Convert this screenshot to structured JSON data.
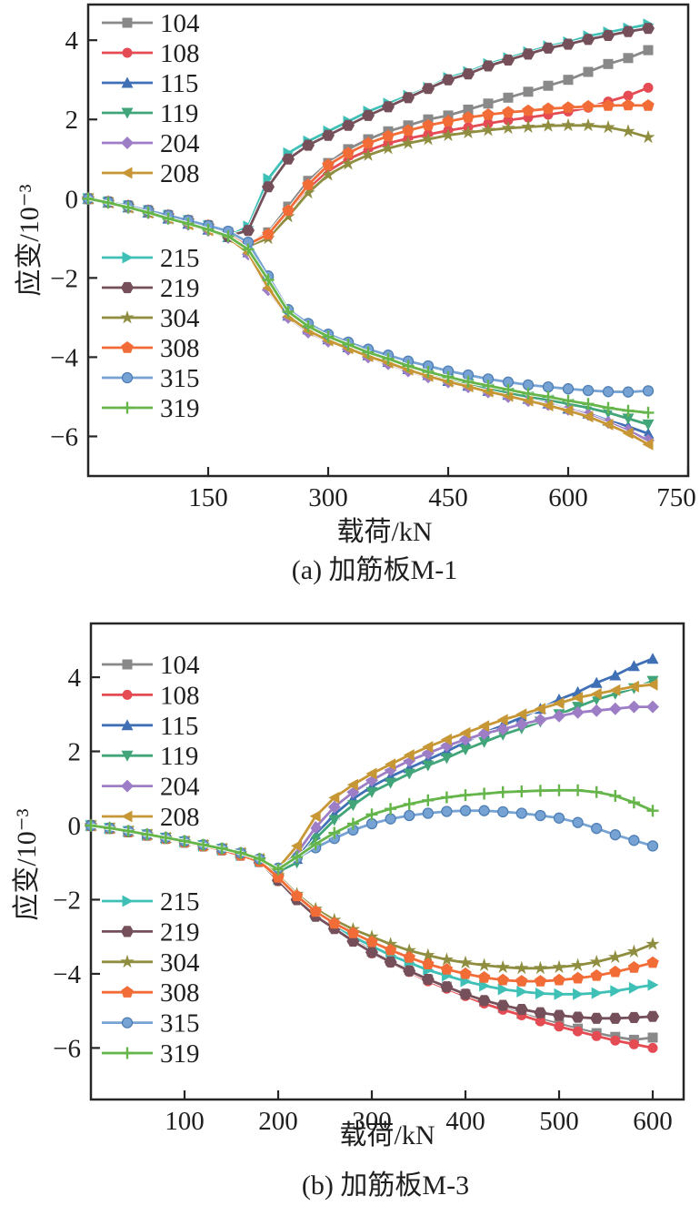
{
  "figure": {
    "background": "#ffffff",
    "text_color": "#1f1f1f",
    "axis_color": "#262626"
  },
  "chart_data": [
    {
      "type": "line",
      "title": "(a) 加筋板M-1",
      "xlabel": "载荷/kN",
      "ylabel": "应变/10⁻³",
      "xlim": [
        0,
        750
      ],
      "ylim": [
        -7.0,
        4.9
      ],
      "xticks": [
        150,
        300,
        450,
        600,
        750
      ],
      "yticks": [
        4,
        2,
        0,
        -2,
        -4,
        -6
      ],
      "grid": false,
      "legend_position": "inside upper-left, two stacked groups",
      "legend_groups": [
        [
          "104",
          "108",
          "115",
          "119",
          "204",
          "208"
        ],
        [
          "215",
          "219",
          "304",
          "308",
          "315",
          "319"
        ]
      ],
      "x": [
        0,
        25,
        50,
        75,
        100,
        125,
        150,
        175,
        200,
        225,
        250,
        275,
        300,
        325,
        350,
        375,
        400,
        425,
        450,
        475,
        500,
        525,
        550,
        575,
        600,
        625,
        650,
        675,
        700
      ],
      "series": [
        {
          "name": "104",
          "color": "#898989",
          "marker": "square",
          "values": [
            0,
            -0.08,
            -0.18,
            -0.3,
            -0.42,
            -0.55,
            -0.68,
            -0.85,
            -1.15,
            -0.85,
            -0.2,
            0.45,
            0.9,
            1.25,
            1.5,
            1.7,
            1.85,
            2.0,
            2.1,
            2.25,
            2.4,
            2.55,
            2.7,
            2.85,
            3.0,
            3.2,
            3.4,
            3.55,
            3.75
          ]
        },
        {
          "name": "108",
          "color": "#e54b52",
          "marker": "circle",
          "values": [
            0,
            -0.09,
            -0.2,
            -0.32,
            -0.45,
            -0.57,
            -0.7,
            -0.88,
            -1.18,
            -0.95,
            -0.35,
            0.25,
            0.7,
            1.0,
            1.22,
            1.4,
            1.52,
            1.62,
            1.72,
            1.8,
            1.9,
            1.98,
            2.05,
            2.12,
            2.2,
            2.3,
            2.45,
            2.6,
            2.8
          ]
        },
        {
          "name": "115",
          "color": "#3f6fb5",
          "marker": "triangle-up",
          "values": [
            0,
            -0.1,
            -0.22,
            -0.35,
            -0.5,
            -0.63,
            -0.78,
            -0.97,
            -1.35,
            -2.2,
            -2.95,
            -3.3,
            -3.55,
            -3.75,
            -3.95,
            -4.12,
            -4.3,
            -4.45,
            -4.6,
            -4.72,
            -4.85,
            -4.95,
            -5.05,
            -5.17,
            -5.3,
            -5.42,
            -5.6,
            -5.75,
            -5.93
          ]
        },
        {
          "name": "119",
          "color": "#41a579",
          "marker": "triangle-down",
          "values": [
            0,
            -0.1,
            -0.22,
            -0.35,
            -0.5,
            -0.63,
            -0.78,
            -0.95,
            -1.3,
            -2.1,
            -2.88,
            -3.25,
            -3.5,
            -3.7,
            -3.9,
            -4.07,
            -4.25,
            -4.4,
            -4.55,
            -4.67,
            -4.8,
            -4.9,
            -5.0,
            -5.08,
            -5.18,
            -5.28,
            -5.4,
            -5.55,
            -5.7
          ]
        },
        {
          "name": "204",
          "color": "#9d7ec6",
          "marker": "diamond",
          "values": [
            0,
            -0.1,
            -0.23,
            -0.36,
            -0.5,
            -0.65,
            -0.8,
            -0.98,
            -1.4,
            -2.3,
            -3.0,
            -3.37,
            -3.6,
            -3.8,
            -4.0,
            -4.17,
            -4.35,
            -4.5,
            -4.63,
            -4.75,
            -4.88,
            -5.0,
            -5.1,
            -5.2,
            -5.32,
            -5.45,
            -5.65,
            -5.85,
            -6.1
          ]
        },
        {
          "name": "208",
          "color": "#c79735",
          "marker": "triangle-left",
          "values": [
            0,
            -0.1,
            -0.23,
            -0.36,
            -0.5,
            -0.65,
            -0.8,
            -0.98,
            -1.37,
            -2.25,
            -2.97,
            -3.33,
            -3.58,
            -3.78,
            -3.98,
            -4.14,
            -4.32,
            -4.48,
            -4.62,
            -4.74,
            -4.87,
            -4.98,
            -5.1,
            -5.22,
            -5.35,
            -5.5,
            -5.7,
            -5.92,
            -6.2
          ]
        },
        {
          "name": "215",
          "color": "#3ec0b6",
          "marker": "triangle-right",
          "values": [
            0,
            -0.08,
            -0.18,
            -0.3,
            -0.42,
            -0.55,
            -0.68,
            -0.95,
            -0.7,
            0.5,
            1.15,
            1.45,
            1.7,
            1.95,
            2.2,
            2.4,
            2.6,
            2.8,
            3.05,
            3.2,
            3.4,
            3.55,
            3.7,
            3.85,
            3.95,
            4.1,
            4.2,
            4.3,
            4.4
          ]
        },
        {
          "name": "219",
          "color": "#75505a",
          "marker": "hexagon",
          "values": [
            0,
            -0.08,
            -0.18,
            -0.3,
            -0.42,
            -0.55,
            -0.68,
            -0.95,
            -0.8,
            0.3,
            1.0,
            1.35,
            1.6,
            1.85,
            2.1,
            2.32,
            2.55,
            2.78,
            3.0,
            3.15,
            3.35,
            3.5,
            3.65,
            3.8,
            3.9,
            4.02,
            4.12,
            4.22,
            4.3
          ]
        },
        {
          "name": "304",
          "color": "#8f8d3f",
          "marker": "star",
          "values": [
            0,
            -0.09,
            -0.2,
            -0.32,
            -0.45,
            -0.57,
            -0.7,
            -0.88,
            -1.2,
            -1.0,
            -0.45,
            0.15,
            0.6,
            0.88,
            1.1,
            1.27,
            1.4,
            1.5,
            1.6,
            1.67,
            1.73,
            1.78,
            1.81,
            1.84,
            1.85,
            1.85,
            1.8,
            1.7,
            1.55
          ]
        },
        {
          "name": "308",
          "color": "#f16c37",
          "marker": "pentagon",
          "values": [
            0,
            -0.08,
            -0.18,
            -0.3,
            -0.42,
            -0.55,
            -0.68,
            -0.85,
            -1.15,
            -0.9,
            -0.3,
            0.35,
            0.85,
            1.15,
            1.4,
            1.58,
            1.72,
            1.85,
            1.95,
            2.05,
            2.12,
            2.18,
            2.22,
            2.27,
            2.3,
            2.33,
            2.35,
            2.36,
            2.35
          ]
        },
        {
          "name": "315",
          "color": "#76a3d3",
          "marker": "ball",
          "values": [
            0,
            -0.08,
            -0.18,
            -0.3,
            -0.42,
            -0.55,
            -0.68,
            -0.82,
            -1.1,
            -1.95,
            -2.8,
            -3.15,
            -3.42,
            -3.62,
            -3.8,
            -3.95,
            -4.1,
            -4.22,
            -4.35,
            -4.45,
            -4.55,
            -4.63,
            -4.7,
            -4.75,
            -4.8,
            -4.84,
            -4.87,
            -4.88,
            -4.85
          ]
        },
        {
          "name": "319",
          "color": "#65b54b",
          "marker": "plus",
          "values": [
            0,
            -0.1,
            -0.22,
            -0.35,
            -0.5,
            -0.63,
            -0.78,
            -0.95,
            -1.28,
            -2.05,
            -2.85,
            -3.22,
            -3.48,
            -3.68,
            -3.88,
            -4.04,
            -4.22,
            -4.37,
            -4.5,
            -4.62,
            -4.72,
            -4.82,
            -4.92,
            -5.0,
            -5.1,
            -5.18,
            -5.28,
            -5.35,
            -5.4
          ]
        }
      ]
    },
    {
      "type": "line",
      "title": "(b) 加筋板M-3",
      "xlabel": "载荷/kN",
      "ylabel": "应变/10⁻³",
      "xlim": [
        0,
        633
      ],
      "ylim": [
        -7.39,
        5.45
      ],
      "xticks": [
        100,
        200,
        300,
        400,
        500,
        600
      ],
      "yticks": [
        4,
        2,
        0,
        -2,
        -4,
        -6
      ],
      "grid": false,
      "legend_position": "inside upper-left, two stacked groups",
      "legend_groups": [
        [
          "104",
          "108",
          "115",
          "119",
          "204",
          "208"
        ],
        [
          "215",
          "219",
          "304",
          "308",
          "315",
          "319"
        ]
      ],
      "x": [
        0,
        20,
        40,
        60,
        80,
        100,
        120,
        140,
        160,
        180,
        200,
        220,
        240,
        260,
        280,
        300,
        320,
        340,
        360,
        380,
        400,
        420,
        440,
        460,
        480,
        500,
        520,
        540,
        560,
        580,
        600
      ],
      "series": [
        {
          "name": "104",
          "color": "#898989",
          "marker": "square",
          "values": [
            0,
            -0.08,
            -0.16,
            -0.25,
            -0.34,
            -0.44,
            -0.54,
            -0.64,
            -0.78,
            -0.95,
            -1.45,
            -1.95,
            -2.35,
            -2.68,
            -3.05,
            -3.4,
            -3.65,
            -3.9,
            -4.15,
            -4.35,
            -4.55,
            -4.75,
            -4.92,
            -5.08,
            -5.22,
            -5.35,
            -5.48,
            -5.6,
            -5.7,
            -5.78,
            -5.72
          ]
        },
        {
          "name": "108",
          "color": "#e54b52",
          "marker": "circle",
          "values": [
            0,
            -0.08,
            -0.17,
            -0.26,
            -0.35,
            -0.45,
            -0.55,
            -0.66,
            -0.8,
            -0.97,
            -1.5,
            -2.0,
            -2.4,
            -2.72,
            -3.1,
            -3.45,
            -3.7,
            -3.95,
            -4.2,
            -4.4,
            -4.6,
            -4.8,
            -4.97,
            -5.12,
            -5.28,
            -5.42,
            -5.55,
            -5.68,
            -5.8,
            -5.9,
            -6.0
          ]
        },
        {
          "name": "115",
          "color": "#3f6fb5",
          "marker": "triangle-up",
          "values": [
            0,
            -0.07,
            -0.15,
            -0.24,
            -0.33,
            -0.42,
            -0.52,
            -0.62,
            -0.74,
            -0.9,
            -1.2,
            -0.9,
            -0.25,
            0.3,
            0.72,
            1.05,
            1.32,
            1.55,
            1.78,
            2.0,
            2.25,
            2.5,
            2.7,
            2.92,
            3.15,
            3.4,
            3.6,
            3.85,
            4.05,
            4.3,
            4.5
          ]
        },
        {
          "name": "119",
          "color": "#41a579",
          "marker": "triangle-down",
          "values": [
            0,
            -0.07,
            -0.15,
            -0.24,
            -0.33,
            -0.43,
            -0.53,
            -0.63,
            -0.76,
            -0.92,
            -1.25,
            -1.0,
            -0.35,
            0.15,
            0.55,
            0.9,
            1.15,
            1.4,
            1.62,
            1.82,
            2.05,
            2.25,
            2.45,
            2.62,
            2.8,
            3.0,
            3.2,
            3.4,
            3.55,
            3.7,
            3.9
          ]
        },
        {
          "name": "204",
          "color": "#9d7ec6",
          "marker": "diamond",
          "values": [
            0,
            -0.07,
            -0.15,
            -0.24,
            -0.33,
            -0.43,
            -0.53,
            -0.63,
            -0.76,
            -0.92,
            -1.2,
            -0.75,
            -0.05,
            0.5,
            0.9,
            1.22,
            1.5,
            1.75,
            1.95,
            2.15,
            2.32,
            2.48,
            2.6,
            2.73,
            2.85,
            2.95,
            3.05,
            3.1,
            3.15,
            3.2,
            3.2
          ]
        },
        {
          "name": "208",
          "color": "#c79735",
          "marker": "triangle-left",
          "values": [
            0,
            -0.07,
            -0.15,
            -0.24,
            -0.33,
            -0.42,
            -0.52,
            -0.62,
            -0.74,
            -0.9,
            -1.15,
            -0.55,
            0.25,
            0.75,
            1.1,
            1.4,
            1.65,
            1.9,
            2.12,
            2.32,
            2.5,
            2.68,
            2.85,
            3.0,
            3.15,
            3.3,
            3.45,
            3.55,
            3.65,
            3.75,
            3.8
          ]
        },
        {
          "name": "215",
          "color": "#3ec0b6",
          "marker": "triangle-right",
          "values": [
            0,
            -0.08,
            -0.17,
            -0.26,
            -0.35,
            -0.45,
            -0.55,
            -0.66,
            -0.8,
            -0.97,
            -1.45,
            -1.95,
            -2.4,
            -2.72,
            -3.0,
            -3.25,
            -3.5,
            -3.7,
            -3.9,
            -4.05,
            -4.2,
            -4.32,
            -4.42,
            -4.48,
            -4.53,
            -4.55,
            -4.55,
            -4.52,
            -4.46,
            -4.38,
            -4.3
          ]
        },
        {
          "name": "219",
          "color": "#75505a",
          "marker": "hexagon",
          "values": [
            0,
            -0.08,
            -0.17,
            -0.26,
            -0.35,
            -0.45,
            -0.55,
            -0.66,
            -0.8,
            -0.97,
            -1.48,
            -2.0,
            -2.45,
            -2.78,
            -3.12,
            -3.42,
            -3.68,
            -3.92,
            -4.15,
            -4.35,
            -4.55,
            -4.72,
            -4.85,
            -4.96,
            -5.05,
            -5.12,
            -5.17,
            -5.2,
            -5.2,
            -5.18,
            -5.15
          ]
        },
        {
          "name": "304",
          "color": "#8f8d3f",
          "marker": "star",
          "values": [
            0,
            -0.08,
            -0.16,
            -0.25,
            -0.34,
            -0.44,
            -0.54,
            -0.64,
            -0.76,
            -0.92,
            -1.35,
            -1.85,
            -2.25,
            -2.55,
            -2.8,
            -3.0,
            -3.2,
            -3.37,
            -3.5,
            -3.62,
            -3.7,
            -3.77,
            -3.82,
            -3.85,
            -3.85,
            -3.82,
            -3.77,
            -3.68,
            -3.55,
            -3.4,
            -3.2
          ]
        },
        {
          "name": "308",
          "color": "#f16c37",
          "marker": "pentagon",
          "values": [
            0,
            -0.08,
            -0.17,
            -0.26,
            -0.35,
            -0.45,
            -0.55,
            -0.66,
            -0.8,
            -0.97,
            -1.4,
            -1.9,
            -2.32,
            -2.64,
            -2.9,
            -3.14,
            -3.36,
            -3.56,
            -3.74,
            -3.88,
            -4.0,
            -4.1,
            -4.17,
            -4.2,
            -4.2,
            -4.17,
            -4.12,
            -4.05,
            -3.95,
            -3.83,
            -3.7
          ]
        },
        {
          "name": "315",
          "color": "#76a3d3",
          "marker": "ball",
          "values": [
            0,
            -0.07,
            -0.15,
            -0.24,
            -0.33,
            -0.42,
            -0.52,
            -0.62,
            -0.74,
            -0.9,
            -1.15,
            -0.88,
            -0.6,
            -0.35,
            -0.12,
            0.05,
            0.18,
            0.27,
            0.33,
            0.38,
            0.4,
            0.4,
            0.37,
            0.33,
            0.27,
            0.2,
            0.08,
            -0.08,
            -0.25,
            -0.4,
            -0.55
          ]
        },
        {
          "name": "319",
          "color": "#65b54b",
          "marker": "plus",
          "values": [
            0,
            -0.07,
            -0.15,
            -0.24,
            -0.33,
            -0.42,
            -0.52,
            -0.62,
            -0.74,
            -0.9,
            -1.18,
            -0.85,
            -0.5,
            -0.2,
            0.05,
            0.3,
            0.45,
            0.58,
            0.68,
            0.76,
            0.82,
            0.86,
            0.9,
            0.92,
            0.94,
            0.95,
            0.95,
            0.9,
            0.8,
            0.62,
            0.4
          ]
        }
      ]
    }
  ]
}
